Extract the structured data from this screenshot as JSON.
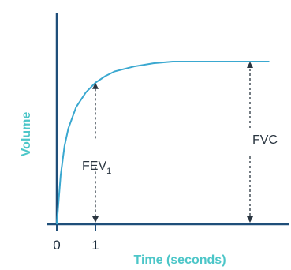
{
  "chart_data": {
    "type": "line",
    "xlabel": "Time (seconds)",
    "ylabel": "Volume",
    "x_ticks": [
      "0",
      "1"
    ],
    "xlim": [
      0,
      5.5
    ],
    "ylim": [
      0,
      1.05
    ],
    "series": [
      {
        "x": [
          0,
          0.1,
          0.2,
          0.3,
          0.5,
          0.75,
          1,
          1.25,
          1.5,
          2,
          2.5,
          3,
          3.5,
          4,
          4.5,
          5.5
        ],
        "y": [
          0,
          0.3,
          0.48,
          0.59,
          0.72,
          0.81,
          0.87,
          0.91,
          0.94,
          0.97,
          0.99,
          1,
          1,
          1,
          1,
          1
        ]
      }
    ],
    "annotations": [
      {
        "label": "FEV",
        "subscript": "1",
        "x": 1,
        "y_from": 0,
        "y_to": 0.87
      },
      {
        "label": "FVC",
        "x": 5,
        "y_from": 0,
        "y_to": 1
      }
    ]
  },
  "colors": {
    "axis": "#1f4e79",
    "curve": "#3aa8d0",
    "arrow": "#2a3540",
    "label_accent": "#4cc6c8"
  }
}
